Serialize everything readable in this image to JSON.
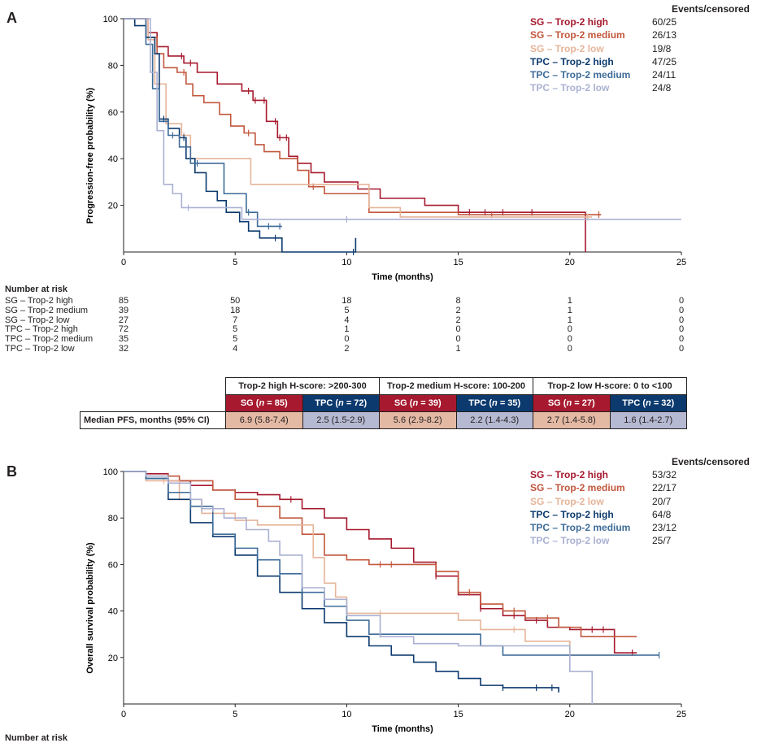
{
  "panels": {
    "a": "A",
    "b": "B"
  },
  "legend_header": "Events/censored",
  "risk_title": "Number at risk",
  "colors": {
    "SG – Trop-2 high": "#a6192e",
    "SG – Trop-2 medium": "#c2573d",
    "SG – Trop-2 low": "#e6b499",
    "TPC – Trop-2 high": "#0c3a6e",
    "TPC – Trop-2 medium": "#3e6c99",
    "TPC – Trop-2 low": "#aab1d2"
  },
  "table": {
    "groups": [
      "Trop-2 high H-score: >200-300",
      "Trop-2 medium H-score: 100-200",
      "Trop-2 low H-score: 0 to <100"
    ],
    "arms": [
      {
        "pre": "SG (",
        "n": "n",
        "post": " = 85)"
      },
      {
        "pre": "TPC (",
        "n": "n",
        "post": " = 72)"
      },
      {
        "pre": "SG (",
        "n": "n",
        "post": " = 39)"
      },
      {
        "pre": "TPC (",
        "n": "n",
        "post": " = 35)"
      },
      {
        "pre": "SG (",
        "n": "n",
        "post": " = 27)"
      },
      {
        "pre": "TPC (",
        "n": "n",
        "post": " = 32)"
      }
    ],
    "row_label": "Median PFS, months (95% CI)",
    "values": [
      "6.9 (5.8-7.4)",
      "2.5 (1.5-2.9)",
      "5.6 (2.9-8.2)",
      "2.2 (1.4-4.3)",
      "2.7 (1.4-5.8)",
      "1.6 (1.4-2.7)"
    ]
  },
  "chart_data": [
    {
      "type": "line",
      "subtype": "kaplan-meier",
      "panel": "A",
      "xlabel": "Time (months)",
      "ylabel": "Progression-free probability (%)",
      "xlim": [
        0,
        25
      ],
      "ylim": [
        0,
        100
      ],
      "xticks": [
        0,
        5,
        10,
        15,
        20,
        25
      ],
      "yticks": [
        20,
        40,
        60,
        80,
        100
      ],
      "legend_position": "top-right",
      "series": [
        {
          "name": "SG – Trop-2 high",
          "events_censored": "60/25",
          "x": [
            0,
            1.1,
            1.5,
            2.0,
            2.7,
            3.3,
            4.2,
            5.3,
            5.8,
            6.4,
            6.9,
            7.4,
            7.8,
            8.4,
            9.0,
            10.5,
            11.5,
            13.5,
            15.0,
            17.0,
            20.7,
            20.7
          ],
          "y": [
            100,
            94,
            88,
            84,
            81,
            77,
            72,
            69,
            65,
            56,
            49,
            41,
            38,
            34,
            30,
            27,
            23,
            20,
            17,
            17,
            17,
            0
          ],
          "censor_x": [
            2.6,
            3.0,
            5.6,
            5.9,
            6.3,
            6.8,
            7.0,
            7.3,
            15.5,
            16.2,
            17.0,
            18.3
          ]
        },
        {
          "name": "SG – Trop-2 medium",
          "events_censored": "26/13",
          "x": [
            0,
            1.0,
            1.5,
            1.8,
            2.4,
            2.8,
            3.1,
            3.6,
            4.3,
            4.8,
            5.4,
            5.9,
            6.3,
            7.0,
            7.8,
            8.3,
            9.0,
            11.0,
            15.0,
            21.4
          ],
          "y": [
            100,
            92,
            85,
            79,
            77,
            72,
            67,
            64,
            59,
            54,
            51,
            46,
            43,
            40,
            35,
            28,
            25,
            17,
            16,
            16
          ],
          "censor_x": [
            2.7,
            5.6,
            8.5,
            16.5,
            21.3
          ]
        },
        {
          "name": "SG – Trop-2 low",
          "events_censored": "19/8",
          "x": [
            0,
            1.1,
            1.4,
            1.9,
            2.6,
            3.0,
            5.5,
            5.7,
            10.5,
            11.0,
            12.4,
            21.0
          ],
          "y": [
            100,
            91,
            72,
            55,
            50,
            40,
            40,
            29,
            29,
            19,
            15,
            15
          ],
          "censor_x": [
            2.7,
            20.8
          ]
        },
        {
          "name": "TPC – Trop-2 high",
          "events_censored": "47/25",
          "x": [
            0,
            0.5,
            1.0,
            1.4,
            1.6,
            2.0,
            2.5,
            2.8,
            3.2,
            3.7,
            4.2,
            4.6,
            5.2,
            5.6,
            6.1,
            7.1,
            7.1,
            10.4
          ],
          "y": [
            100,
            97,
            92,
            85,
            57,
            53,
            49,
            40,
            34,
            26,
            22,
            17,
            13,
            9,
            6,
            6,
            0,
            6
          ],
          "censor_x": [
            1.8,
            2.7,
            6.8,
            10.3
          ]
        },
        {
          "name": "TPC – Trop-2 medium",
          "events_censored": "24/11",
          "x": [
            0,
            1.0,
            1.3,
            1.6,
            2.0,
            2.5,
            3.0,
            4.2,
            4.5,
            5.5,
            6.0,
            7.1
          ],
          "y": [
            100,
            89,
            70,
            56,
            50,
            45,
            38,
            38,
            25,
            17,
            11,
            11
          ],
          "censor_x": [
            2.2,
            3.3,
            5.6,
            6.5,
            7.0
          ]
        },
        {
          "name": "TPC – Trop-2 low",
          "events_censored": "24/8",
          "x": [
            0,
            1.2,
            1.5,
            1.8,
            2.2,
            2.6,
            3.0,
            5.3,
            5.8,
            25.0
          ],
          "y": [
            100,
            77,
            52,
            29,
            25,
            19,
            19,
            14,
            14,
            14
          ],
          "censor_x": [
            2.9,
            10.0
          ]
        }
      ],
      "number_at_risk": {
        "times": [
          "0",
          "5",
          "10",
          "15",
          "20",
          "25"
        ],
        "rows": [
          {
            "label": "SG – Trop-2 high",
            "values": [
              "85",
              "50",
              "18",
              "8",
              "1",
              "0"
            ]
          },
          {
            "label": "SG – Trop-2 medium",
            "values": [
              "39",
              "18",
              "5",
              "2",
              "1",
              "0"
            ]
          },
          {
            "label": "SG – Trop-2 low",
            "values": [
              "27",
              "7",
              "4",
              "2",
              "1",
              "0"
            ]
          },
          {
            "label": "TPC – Trop-2 high",
            "values": [
              "72",
              "5",
              "1",
              "0",
              "0",
              "0"
            ]
          },
          {
            "label": "TPC – Trop-2 medium",
            "values": [
              "35",
              "5",
              "0",
              "0",
              "0",
              "0"
            ]
          },
          {
            "label": "TPC – Trop-2 low",
            "values": [
              "32",
              "4",
              "2",
              "1",
              "0",
              "0"
            ]
          }
        ]
      }
    },
    {
      "type": "line",
      "subtype": "kaplan-meier",
      "panel": "B",
      "xlabel": "Time (months)",
      "ylabel": "Overall survival probability (%)",
      "xlim": [
        0,
        25
      ],
      "ylim": [
        0,
        100
      ],
      "xticks": [
        0,
        5,
        10,
        15,
        20,
        25
      ],
      "yticks": [
        20,
        40,
        60,
        80,
        100
      ],
      "legend_position": "top-right",
      "series": [
        {
          "name": "SG – Trop-2 high",
          "events_censored": "53/32",
          "x": [
            0,
            1.0,
            2.0,
            3.0,
            4.0,
            5.0,
            6.0,
            7.0,
            8.0,
            9.0,
            10.0,
            11.0,
            12.0,
            13.0,
            14.0,
            15.0,
            16.0,
            17.0,
            18.0,
            19.0,
            20.0,
            21.0,
            22.0,
            22.0,
            23.0
          ],
          "y": [
            100,
            99,
            96,
            94,
            92,
            91,
            90,
            88,
            84,
            80,
            75,
            71,
            67,
            61,
            55,
            47,
            41,
            38,
            36,
            33,
            32,
            32,
            32,
            22,
            22
          ],
          "censor_x": [
            2.5,
            5.0,
            7.5,
            14.0,
            16.0,
            17.5,
            18.5,
            21.0,
            21.5,
            22.8
          ]
        },
        {
          "name": "SG – Trop-2 medium",
          "events_censored": "22/17",
          "x": [
            0,
            1.0,
            2.5,
            4.0,
            5.0,
            6.0,
            7.0,
            8.0,
            9.0,
            10.0,
            11.0,
            13.0,
            14.0,
            15.0,
            16.0,
            17.0,
            18.0,
            19.5,
            20.5,
            23.0
          ],
          "y": [
            100,
            98,
            96,
            92,
            88,
            85,
            80,
            73,
            64,
            62,
            60,
            60,
            57,
            48,
            43,
            40,
            37,
            33,
            29,
            29
          ],
          "censor_x": [
            2.0,
            11.5,
            12.0,
            15.5,
            17.5,
            19.0
          ]
        },
        {
          "name": "SG – Trop-2 low",
          "events_censored": "20/7",
          "x": [
            0,
            1.0,
            2.5,
            3.5,
            5.0,
            6.0,
            7.5,
            8.5,
            9.0,
            9.5,
            10.0,
            13.0,
            15.0,
            16.0,
            18.0,
            20.0,
            22.0,
            23.0
          ],
          "y": [
            100,
            96,
            88,
            82,
            79,
            77,
            77,
            63,
            52,
            46,
            39,
            39,
            36,
            32,
            27,
            21,
            21,
            21
          ],
          "censor_x": [
            1.8,
            5.5,
            11.5,
            17.5
          ]
        },
        {
          "name": "TPC – Trop-2 high",
          "events_censored": "64/8",
          "x": [
            0,
            1.0,
            2.0,
            3.0,
            4.0,
            5.0,
            6.0,
            7.0,
            8.0,
            9.0,
            10.0,
            11.0,
            12.0,
            13.0,
            14.0,
            15.0,
            16.0,
            17.0,
            19.5
          ],
          "y": [
            100,
            97,
            88,
            78,
            72,
            64,
            55,
            48,
            41,
            35,
            29,
            25,
            21,
            18,
            14,
            11,
            8,
            7,
            5
          ],
          "censor_x": [
            17.0,
            18.5,
            19.2
          ]
        },
        {
          "name": "TPC – Trop-2 medium",
          "events_censored": "23/12",
          "x": [
            0,
            1.0,
            2.0,
            3.0,
            4.0,
            5.0,
            6.0,
            7.0,
            8.0,
            9.0,
            10.0,
            11.0,
            15.0,
            16.0,
            17.0,
            20.0,
            24.0
          ],
          "y": [
            100,
            97,
            91,
            85,
            73,
            67,
            62,
            56,
            48,
            42,
            36,
            30,
            30,
            25,
            21,
            21,
            21
          ],
          "censor_x": [
            3.0,
            7.0,
            11.5,
            24.0
          ]
        },
        {
          "name": "TPC – Trop-2 low",
          "events_censored": "25/7",
          "x": [
            0,
            1.0,
            2.0,
            3.0,
            3.5,
            4.5,
            5.5,
            6.5,
            7.0,
            8.0,
            9.0,
            10.0,
            11.5,
            13.0,
            15.0,
            18.0,
            20.0,
            21.0,
            21.0
          ],
          "y": [
            100,
            98,
            95,
            88,
            84,
            80,
            75,
            70,
            64,
            50,
            45,
            38,
            29,
            26,
            25,
            25,
            14,
            14,
            0
          ],
          "censor_x": [
            3.5,
            4.0
          ]
        }
      ]
    }
  ]
}
